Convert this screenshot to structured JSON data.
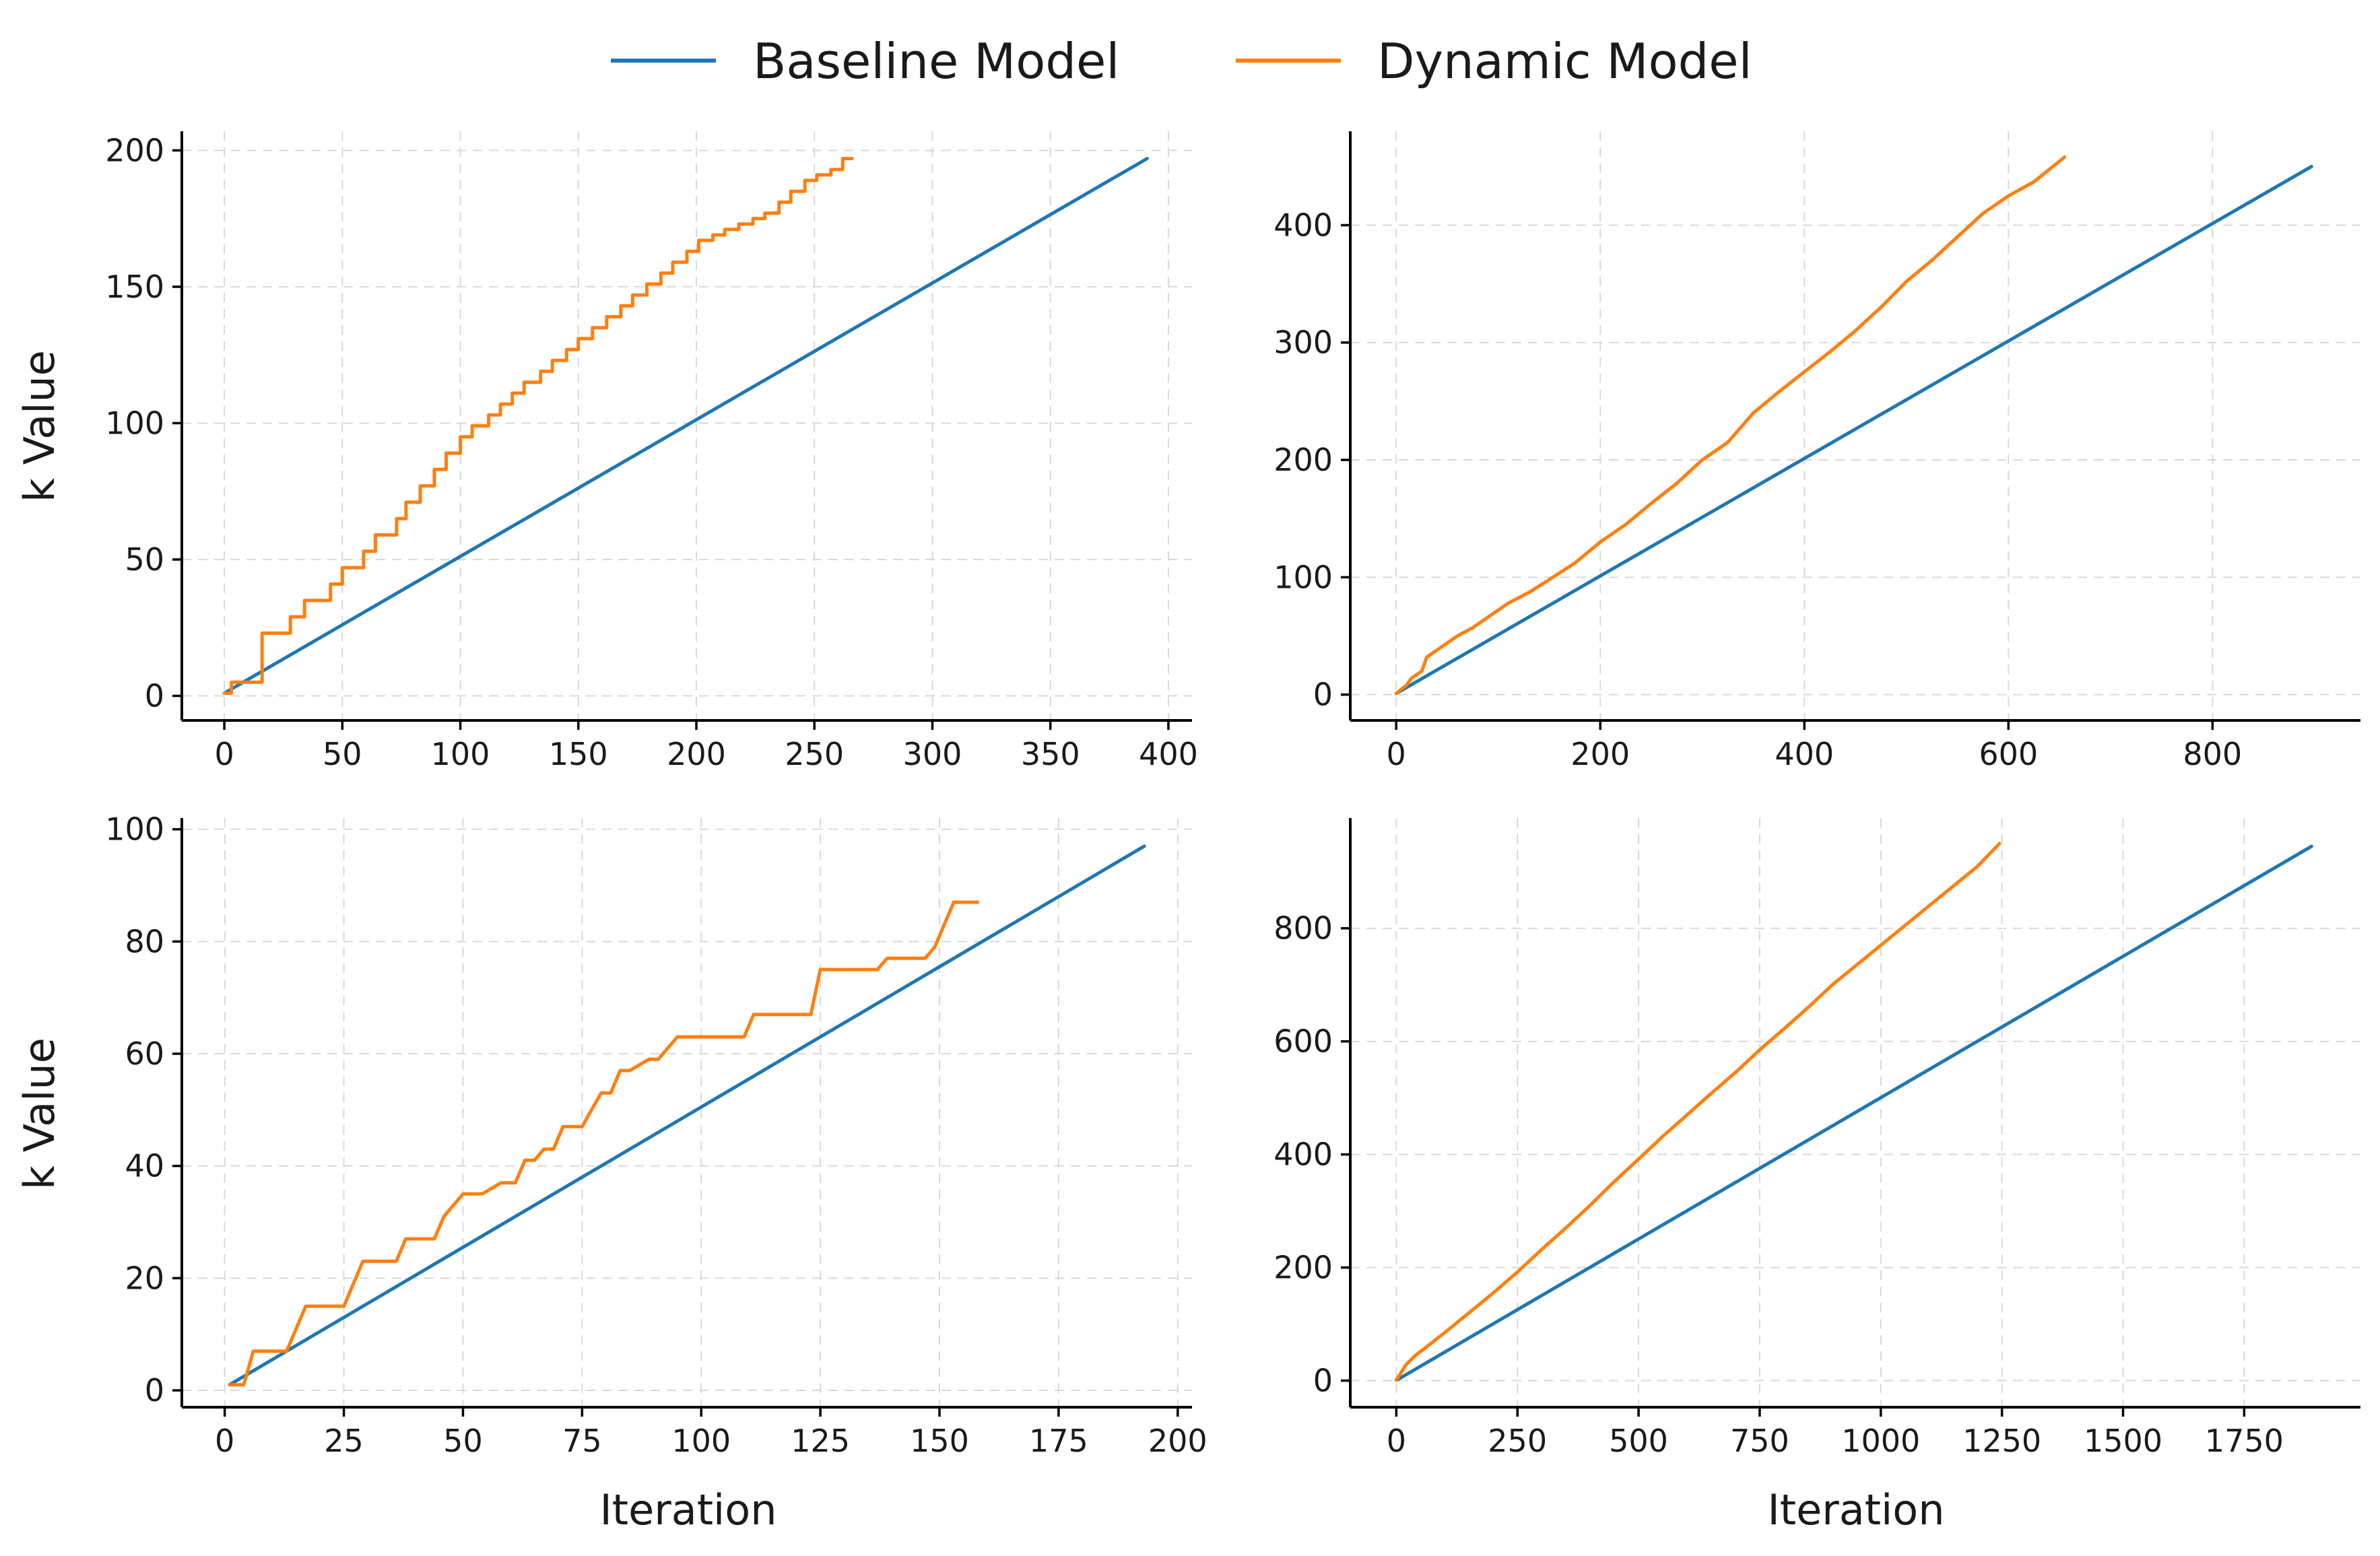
{
  "legend": {
    "items": [
      {
        "label": "Baseline Model",
        "color": "#1f77b4"
      },
      {
        "label": "Dynamic Model",
        "color": "#ff7f0e"
      }
    ]
  },
  "labels": {
    "y_top": "k Value",
    "y_bottom": "k Value",
    "x_left": "Iteration",
    "x_right": "Iteration"
  },
  "chart_data": [
    {
      "type": "line",
      "title": "",
      "xlabel": "",
      "ylabel": "k Value",
      "xlim": [
        -18,
        410
      ],
      "ylim": [
        -9,
        207
      ],
      "xticks": [
        0,
        50,
        100,
        150,
        200,
        250,
        300,
        350,
        400
      ],
      "yticks": [
        0,
        50,
        100,
        150,
        200
      ],
      "grid": true,
      "series": [
        {
          "name": "Baseline Model",
          "color": "#1f77b4",
          "x": [
            0,
            391
          ],
          "y": [
            1,
            197
          ]
        },
        {
          "name": "Dynamic Model",
          "color": "#ff7f0e",
          "x": [
            0,
            3,
            3,
            16,
            16,
            28,
            28,
            34,
            34,
            45,
            45,
            50,
            50,
            59,
            59,
            64,
            64,
            73,
            73,
            77,
            77,
            83,
            83,
            89,
            89,
            94,
            94,
            100,
            100,
            105,
            105,
            112,
            112,
            117,
            117,
            122,
            122,
            127,
            127,
            134,
            134,
            139,
            139,
            145,
            145,
            150,
            150,
            156,
            156,
            162,
            162,
            168,
            168,
            173,
            173,
            179,
            179,
            185,
            185,
            190,
            190,
            196,
            196,
            201,
            201,
            207,
            207,
            212,
            212,
            218,
            218,
            224,
            224,
            229,
            229,
            235,
            235,
            240,
            240,
            246,
            246,
            251,
            251,
            257,
            257,
            262,
            262,
            266
          ],
          "y": [
            1,
            1,
            5,
            5,
            23,
            23,
            29,
            29,
            35,
            35,
            41,
            41,
            47,
            47,
            53,
            53,
            59,
            59,
            65,
            65,
            71,
            71,
            77,
            77,
            83,
            83,
            89,
            89,
            95,
            95,
            99,
            99,
            103,
            103,
            107,
            107,
            111,
            111,
            115,
            115,
            119,
            119,
            123,
            123,
            127,
            127,
            131,
            131,
            135,
            135,
            139,
            139,
            143,
            143,
            147,
            147,
            151,
            151,
            155,
            155,
            159,
            159,
            163,
            163,
            167,
            167,
            169,
            169,
            171,
            171,
            173,
            173,
            175,
            175,
            177,
            177,
            181,
            181,
            185,
            185,
            189,
            189,
            191,
            191,
            193,
            193,
            197,
            197
          ]
        }
      ]
    },
    {
      "type": "line",
      "title": "",
      "xlabel": "",
      "ylabel": "",
      "xlim": [
        -45,
        945
      ],
      "ylim": [
        -22,
        480
      ],
      "xticks": [
        0,
        200,
        400,
        600,
        800
      ],
      "yticks": [
        0,
        100,
        200,
        300,
        400
      ],
      "grid": true,
      "series": [
        {
          "name": "Baseline Model",
          "color": "#1f77b4",
          "x": [
            0,
            897
          ],
          "y": [
            1,
            450
          ]
        },
        {
          "name": "Dynamic Model",
          "color": "#ff7f0e",
          "x": [
            0,
            10,
            15,
            25,
            30,
            40,
            50,
            60,
            75,
            90,
            110,
            130,
            150,
            175,
            200,
            225,
            250,
            275,
            300,
            325,
            350,
            375,
            400,
            425,
            450,
            475,
            500,
            525,
            550,
            575,
            600,
            625,
            655
          ],
          "y": [
            1,
            8,
            14,
            20,
            32,
            38,
            44,
            50,
            57,
            66,
            78,
            87,
            98,
            112,
            130,
            145,
            163,
            180,
            200,
            215,
            240,
            258,
            275,
            292,
            310,
            330,
            352,
            370,
            390,
            410,
            425,
            437,
            458
          ]
        }
      ]
    },
    {
      "type": "line",
      "title": "",
      "xlabel": "Iteration",
      "ylabel": "k Value",
      "xlim": [
        -9,
        203
      ],
      "ylim": [
        -3,
        102
      ],
      "xticks": [
        0,
        25,
        50,
        75,
        100,
        125,
        150,
        175,
        200
      ],
      "yticks": [
        0,
        20,
        40,
        60,
        80,
        100
      ],
      "grid": true,
      "series": [
        {
          "name": "Baseline Model",
          "color": "#1f77b4",
          "x": [
            1,
            193
          ],
          "y": [
            1,
            97
          ]
        },
        {
          "name": "Dynamic Model",
          "color": "#ff7f0e",
          "x": [
            1,
            4,
            6,
            10,
            13,
            15,
            17,
            25,
            29,
            36,
            38,
            44,
            46,
            50,
            54,
            58,
            61,
            63,
            65,
            67,
            69,
            71,
            73,
            75,
            79,
            81,
            83,
            85,
            89,
            91,
            95,
            97,
            109,
            111,
            123,
            125,
            137,
            139,
            147,
            149,
            153,
            158
          ],
          "y": [
            1,
            1,
            7,
            7,
            7,
            11,
            15,
            15,
            23,
            23,
            27,
            27,
            31,
            35,
            35,
            37,
            37,
            41,
            41,
            43,
            43,
            47,
            47,
            47,
            53,
            53,
            57,
            57,
            59,
            59,
            63,
            63,
            63,
            67,
            67,
            75,
            75,
            77,
            77,
            79,
            87,
            87
          ]
        }
      ]
    },
    {
      "type": "line",
      "title": "",
      "xlabel": "Iteration",
      "ylabel": "",
      "xlim": [
        -95,
        1990
      ],
      "ylim": [
        -47,
        995
      ],
      "xticks": [
        0,
        250,
        500,
        750,
        1000,
        1250,
        1500,
        1750
      ],
      "yticks": [
        0,
        200,
        400,
        600,
        800
      ],
      "grid": true,
      "series": [
        {
          "name": "Baseline Model",
          "color": "#1f77b4",
          "x": [
            1,
            1889
          ],
          "y": [
            1,
            945
          ]
        },
        {
          "name": "Dynamic Model",
          "color": "#ff7f0e",
          "x": [
            0,
            20,
            40,
            60,
            100,
            150,
            200,
            250,
            300,
            350,
            400,
            450,
            500,
            550,
            600,
            650,
            700,
            750,
            800,
            850,
            900,
            950,
            1000,
            1050,
            1100,
            1150,
            1200,
            1245
          ],
          "y": [
            1,
            28,
            45,
            58,
            85,
            120,
            155,
            192,
            232,
            270,
            310,
            352,
            392,
            432,
            470,
            508,
            545,
            585,
            622,
            660,
            700,
            735,
            770,
            805,
            840,
            875,
            910,
            950
          ]
        }
      ]
    }
  ]
}
